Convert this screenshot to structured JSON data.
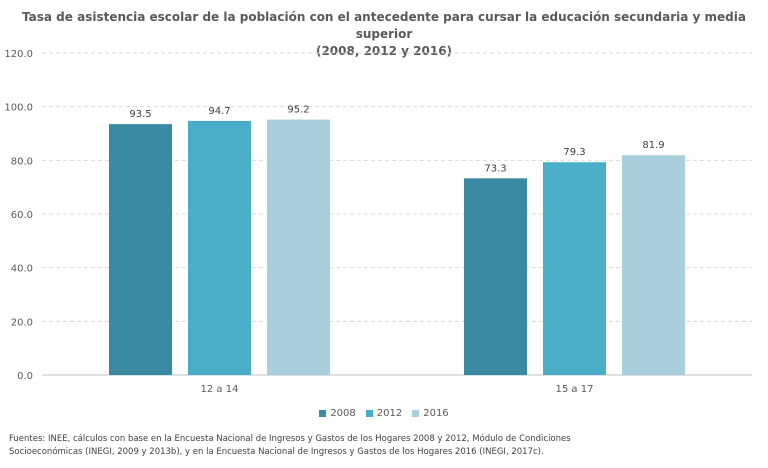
{
  "chart_data": {
    "type": "bar",
    "title_line1": "Tasa de asistencia escolar de la población con el antecedente para cursar la educación secundaria y media superior",
    "title_line2": "(2008, 2012 y 2016)",
    "categories": [
      "12 a 14",
      "15 a 17"
    ],
    "series": [
      {
        "name": "2008",
        "values": [
          93.5,
          73.3
        ],
        "color": "#3a8aa3"
      },
      {
        "name": "2012",
        "values": [
          94.7,
          79.3
        ],
        "color": "#4aaec8"
      },
      {
        "name": "2016",
        "values": [
          95.2,
          81.9
        ],
        "color": "#a9cfdd"
      }
    ],
    "ylim": [
      0,
      120
    ],
    "yticks": [
      "0.0",
      "20.0",
      "40.0",
      "60.0",
      "80.0",
      "100.0",
      "120.0"
    ],
    "grid": true,
    "legend_position": "bottom"
  },
  "source_note": {
    "line1": "Fuentes: INEE, cálculos con base en la Encuesta Nacional de Ingresos y Gastos de los Hogares 2008 y 2012, Módulo de Condiciones",
    "line2": "Socioeconómicas (INEGI, 2009 y 2013b), y en la Encuesta Nacional de Ingresos y Gastos de los Hogares 2016 (INEGI, 2017c)."
  }
}
